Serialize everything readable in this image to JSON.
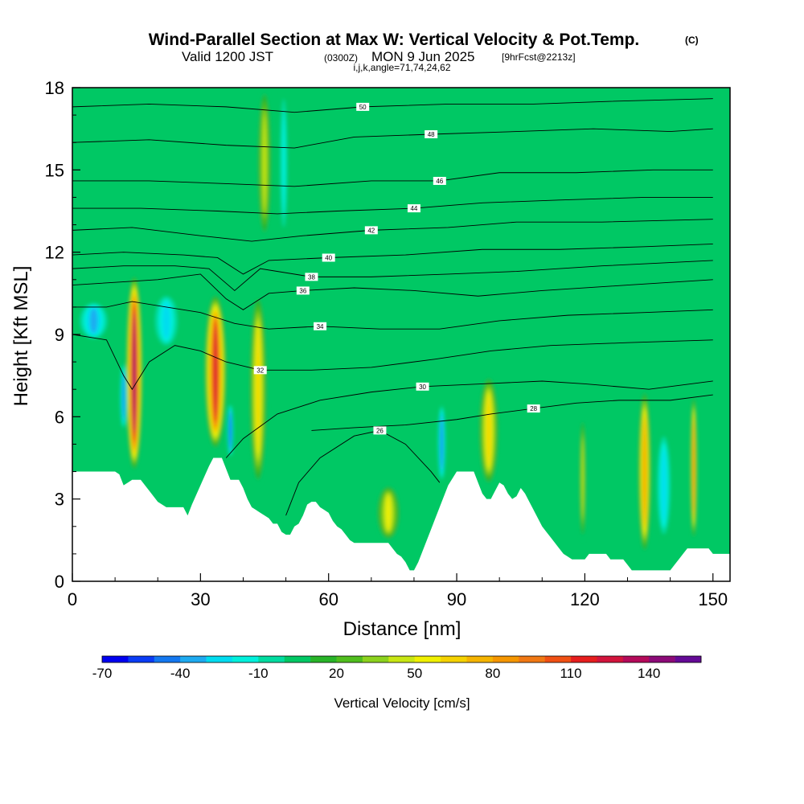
{
  "header": {
    "title_main": "Wind-Parallel Section at Max W: Vertical Velocity & Pot.Temp.",
    "title_mark": "(C)",
    "valid_prefix": "Valid 1200 JST",
    "valid_utc": "(0300Z)",
    "valid_date": "MON 9 Jun 2025",
    "forecast": "[9hrFcst@2213z]",
    "params": "i,j,k,angle=71,74,24,62"
  },
  "colorbar": {
    "label": "Vertical Velocity [cm/s]",
    "colors": [
      "#0000f0",
      "#0a3cf5",
      "#1478f0",
      "#1eaaf0",
      "#00dcf0",
      "#00f0dc",
      "#00dca0",
      "#00c864",
      "#28b428",
      "#50be1e",
      "#8cd21e",
      "#c8e614",
      "#f0f000",
      "#f5d200",
      "#f5b400",
      "#f59600",
      "#f07814",
      "#f05014",
      "#e61e1e",
      "#d2143c",
      "#b40a5a",
      "#8c0a78",
      "#640a96"
    ],
    "tick_values": [
      -70,
      -40,
      -10,
      20,
      50,
      80,
      110,
      140
    ],
    "min": -70,
    "step": 10
  },
  "chart_data": {
    "type": "heatmap",
    "title": "Wind-Parallel Section at Max W: Vertical Velocity & Pot.Temp.",
    "xlabel": "Distance [nm]",
    "ylabel": "Height [Kft MSL]",
    "xlim": [
      0,
      154
    ],
    "ylim": [
      0,
      18
    ],
    "xticks": [
      0,
      30,
      60,
      90,
      120,
      150
    ],
    "yticks": [
      0,
      3,
      6,
      9,
      12,
      15,
      18
    ],
    "background_color": "#00c864",
    "terrain": {
      "x": [
        0,
        10,
        11,
        12,
        13,
        14,
        16,
        18,
        20,
        22,
        24,
        26,
        27,
        28,
        30,
        32,
        33,
        35,
        36,
        37,
        38,
        39,
        40,
        41,
        42,
        43,
        44,
        45,
        46,
        47,
        48,
        49,
        50,
        51,
        52,
        53,
        54,
        55,
        56,
        57,
        58,
        59,
        60,
        61,
        62,
        63,
        64,
        65,
        66,
        67,
        68,
        69,
        70,
        71,
        72,
        73,
        74,
        75,
        76,
        77,
        78,
        79,
        80,
        81,
        82,
        83,
        84,
        85,
        86,
        87,
        88,
        90,
        94,
        95,
        96,
        97,
        98,
        99,
        100,
        101,
        102,
        103,
        104,
        105,
        106,
        107,
        108,
        109,
        110,
        111,
        112,
        113,
        114,
        115,
        116,
        117,
        118,
        119,
        120,
        121,
        122,
        123,
        124,
        125,
        126,
        127,
        128,
        129,
        130,
        131,
        132,
        133,
        134,
        135,
        136,
        137,
        138,
        139,
        140,
        141,
        142,
        143,
        144,
        145,
        146,
        147,
        148,
        149,
        150,
        151,
        152,
        153,
        154
      ],
      "y": [
        4.0,
        4.0,
        3.9,
        3.5,
        3.6,
        3.7,
        3.7,
        3.3,
        2.9,
        2.7,
        2.7,
        2.7,
        2.4,
        2.8,
        3.5,
        4.2,
        4.5,
        4.5,
        4.1,
        3.7,
        3.7,
        3.7,
        3.4,
        3.0,
        2.7,
        2.6,
        2.5,
        2.4,
        2.3,
        2.1,
        2.1,
        1.8,
        1.7,
        1.7,
        2.0,
        2.1,
        2.4,
        2.8,
        2.9,
        2.9,
        2.7,
        2.6,
        2.5,
        2.2,
        2.0,
        1.9,
        1.7,
        1.5,
        1.4,
        1.4,
        1.4,
        1.4,
        1.4,
        1.4,
        1.4,
        1.4,
        1.4,
        1.2,
        1.0,
        0.9,
        0.7,
        0.4,
        0.4,
        0.7,
        1.1,
        1.5,
        1.9,
        2.3,
        2.7,
        3.1,
        3.5,
        4.0,
        4.0,
        3.6,
        3.2,
        3.0,
        3.0,
        3.3,
        3.6,
        3.5,
        3.2,
        3.0,
        3.1,
        3.4,
        3.2,
        2.9,
        2.6,
        2.3,
        2.0,
        1.8,
        1.6,
        1.4,
        1.2,
        1.0,
        0.9,
        0.8,
        0.8,
        0.8,
        0.8,
        1.0,
        1.0,
        1.0,
        1.0,
        1.0,
        0.8,
        0.8,
        0.8,
        0.8,
        0.6,
        0.4,
        0.4,
        0.4,
        0.4,
        0.4,
        0.4,
        0.4,
        0.4,
        0.4,
        0.4,
        0.6,
        0.8,
        1.0,
        1.2,
        1.2,
        1.2,
        1.2,
        1.2,
        1.2,
        1.0,
        1.0,
        1.0,
        1.0,
        1.0
      ]
    },
    "vertical_velocity_cells": [
      {
        "x": 14.5,
        "half_width": 2.0,
        "y0": 4.0,
        "y1": 11.2,
        "peak": 140
      },
      {
        "x": 12.0,
        "half_width": 0.9,
        "y0": 5.5,
        "y1": 8.0,
        "peak": -50
      },
      {
        "x": 33.5,
        "half_width": 2.7,
        "y0": 4.8,
        "y1": 10.5,
        "peak": 120
      },
      {
        "x": 37.0,
        "half_width": 0.8,
        "y0": 4.5,
        "y1": 6.5,
        "peak": -60
      },
      {
        "x": 43.5,
        "half_width": 2.2,
        "y0": 3.5,
        "y1": 10.5,
        "peak": 60
      },
      {
        "x": 45.0,
        "half_width": 1.8,
        "y0": 12.5,
        "y1": 18.0,
        "peak": 40
      },
      {
        "x": 49.5,
        "half_width": 1.2,
        "y0": 12.5,
        "y1": 18.0,
        "peak": -20
      },
      {
        "x": 74.0,
        "half_width": 3.0,
        "y0": 1.5,
        "y1": 3.5,
        "peak": 50
      },
      {
        "x": 86.5,
        "half_width": 1.0,
        "y0": 3.6,
        "y1": 6.5,
        "peak": -50
      },
      {
        "x": 97.5,
        "half_width": 2.5,
        "y0": 3.5,
        "y1": 7.5,
        "peak": 55
      },
      {
        "x": 119.5,
        "half_width": 0.8,
        "y0": 1.5,
        "y1": 6.0,
        "peak": 35
      },
      {
        "x": 134.0,
        "half_width": 1.6,
        "y0": 1.0,
        "y1": 7.0,
        "peak": 75
      },
      {
        "x": 138.5,
        "half_width": 2.0,
        "y0": 1.5,
        "y1": 5.5,
        "peak": -30
      },
      {
        "x": 145.5,
        "half_width": 0.8,
        "y0": 1.5,
        "y1": 6.8,
        "peak": 85
      },
      {
        "x": 22.0,
        "half_width": 3.5,
        "y0": 8.5,
        "y1": 10.5,
        "peak": -30
      },
      {
        "x": 5.0,
        "half_width": 4.0,
        "y0": 8.8,
        "y1": 10.2,
        "peak": -35
      }
    ],
    "theta_contours": [
      {
        "label": "26",
        "points": [
          [
            50,
            2.4
          ],
          [
            53,
            3.6
          ],
          [
            58,
            4.5
          ],
          [
            66,
            5.3
          ],
          [
            72,
            5.5
          ],
          [
            78,
            5.0
          ],
          [
            84,
            4.0
          ],
          [
            86,
            3.6
          ]
        ]
      },
      {
        "label": "28",
        "points": [
          [
            56,
            5.5
          ],
          [
            66,
            5.6
          ],
          [
            78,
            5.7
          ],
          [
            90,
            5.9
          ],
          [
            98,
            6.1
          ],
          [
            108,
            6.3
          ],
          [
            118,
            6.5
          ],
          [
            128,
            6.6
          ],
          [
            140,
            6.6
          ],
          [
            150,
            6.8
          ]
        ]
      },
      {
        "label": "30",
        "points": [
          [
            36,
            4.5
          ],
          [
            40,
            5.2
          ],
          [
            48,
            6.1
          ],
          [
            58,
            6.6
          ],
          [
            70,
            6.9
          ],
          [
            82,
            7.1
          ],
          [
            96,
            7.2
          ],
          [
            110,
            7.3
          ],
          [
            120,
            7.2
          ],
          [
            135,
            7.0
          ],
          [
            150,
            7.3
          ]
        ]
      },
      {
        "label": "32",
        "points": [
          [
            0,
            9.0
          ],
          [
            8,
            8.8
          ],
          [
            12,
            7.5
          ],
          [
            14,
            7.0
          ],
          [
            18,
            8.0
          ],
          [
            24,
            8.6
          ],
          [
            30,
            8.4
          ],
          [
            36,
            8.0
          ],
          [
            44,
            7.7
          ],
          [
            56,
            7.7
          ],
          [
            70,
            7.8
          ],
          [
            85,
            8.1
          ],
          [
            98,
            8.4
          ],
          [
            112,
            8.6
          ],
          [
            130,
            8.7
          ],
          [
            150,
            8.8
          ]
        ]
      },
      {
        "label": "34",
        "points": [
          [
            0,
            10.0
          ],
          [
            8,
            10.0
          ],
          [
            14,
            10.2
          ],
          [
            22,
            10.0
          ],
          [
            30,
            9.8
          ],
          [
            38,
            9.4
          ],
          [
            46,
            9.2
          ],
          [
            58,
            9.3
          ],
          [
            72,
            9.2
          ],
          [
            86,
            9.2
          ],
          [
            100,
            9.5
          ],
          [
            116,
            9.7
          ],
          [
            134,
            9.8
          ],
          [
            150,
            9.9
          ]
        ]
      },
      {
        "label": "36",
        "points": [
          [
            0,
            10.8
          ],
          [
            10,
            10.9
          ],
          [
            20,
            11.0
          ],
          [
            30,
            11.2
          ],
          [
            36,
            10.3
          ],
          [
            40,
            9.9
          ],
          [
            46,
            10.5
          ],
          [
            54,
            10.6
          ],
          [
            66,
            10.7
          ],
          [
            80,
            10.6
          ],
          [
            95,
            10.4
          ],
          [
            110,
            10.6
          ],
          [
            130,
            10.8
          ],
          [
            150,
            11.0
          ]
        ]
      },
      {
        "label": "38",
        "points": [
          [
            0,
            11.4
          ],
          [
            12,
            11.5
          ],
          [
            24,
            11.5
          ],
          [
            32,
            11.4
          ],
          [
            38,
            10.6
          ],
          [
            44,
            11.4
          ],
          [
            56,
            11.1
          ],
          [
            70,
            11.1
          ],
          [
            88,
            11.2
          ],
          [
            104,
            11.3
          ],
          [
            124,
            11.5
          ],
          [
            150,
            11.7
          ]
        ]
      },
      {
        "label": "40",
        "points": [
          [
            0,
            11.9
          ],
          [
            12,
            12.0
          ],
          [
            26,
            11.9
          ],
          [
            34,
            11.8
          ],
          [
            40,
            11.2
          ],
          [
            46,
            11.7
          ],
          [
            60,
            11.8
          ],
          [
            78,
            11.9
          ],
          [
            96,
            12.1
          ],
          [
            114,
            12.1
          ],
          [
            134,
            12.2
          ],
          [
            150,
            12.3
          ]
        ]
      },
      {
        "label": "42",
        "points": [
          [
            0,
            12.8
          ],
          [
            14,
            12.9
          ],
          [
            30,
            12.6
          ],
          [
            42,
            12.4
          ],
          [
            54,
            12.6
          ],
          [
            70,
            12.8
          ],
          [
            88,
            12.9
          ],
          [
            104,
            13.1
          ],
          [
            124,
            13.1
          ],
          [
            150,
            13.2
          ]
        ]
      },
      {
        "label": "44",
        "points": [
          [
            0,
            13.6
          ],
          [
            16,
            13.6
          ],
          [
            34,
            13.5
          ],
          [
            48,
            13.4
          ],
          [
            62,
            13.5
          ],
          [
            80,
            13.6
          ],
          [
            96,
            13.8
          ],
          [
            114,
            13.9
          ],
          [
            134,
            14.0
          ],
          [
            150,
            14.0
          ]
        ]
      },
      {
        "label": "46",
        "points": [
          [
            0,
            14.6
          ],
          [
            18,
            14.6
          ],
          [
            36,
            14.5
          ],
          [
            52,
            14.4
          ],
          [
            70,
            14.6
          ],
          [
            86,
            14.6
          ],
          [
            100,
            14.9
          ],
          [
            118,
            14.9
          ],
          [
            136,
            15.0
          ],
          [
            150,
            15.0
          ]
        ]
      },
      {
        "label": "48",
        "points": [
          [
            0,
            16.0
          ],
          [
            18,
            16.1
          ],
          [
            36,
            15.9
          ],
          [
            52,
            15.8
          ],
          [
            66,
            16.2
          ],
          [
            84,
            16.3
          ],
          [
            104,
            16.4
          ],
          [
            122,
            16.5
          ],
          [
            140,
            16.4
          ],
          [
            150,
            16.5
          ]
        ]
      },
      {
        "label": "50",
        "points": [
          [
            0,
            17.3
          ],
          [
            18,
            17.4
          ],
          [
            36,
            17.3
          ],
          [
            52,
            17.1
          ],
          [
            68,
            17.3
          ],
          [
            88,
            17.4
          ],
          [
            108,
            17.4
          ],
          [
            126,
            17.5
          ],
          [
            150,
            17.6
          ]
        ]
      }
    ]
  }
}
